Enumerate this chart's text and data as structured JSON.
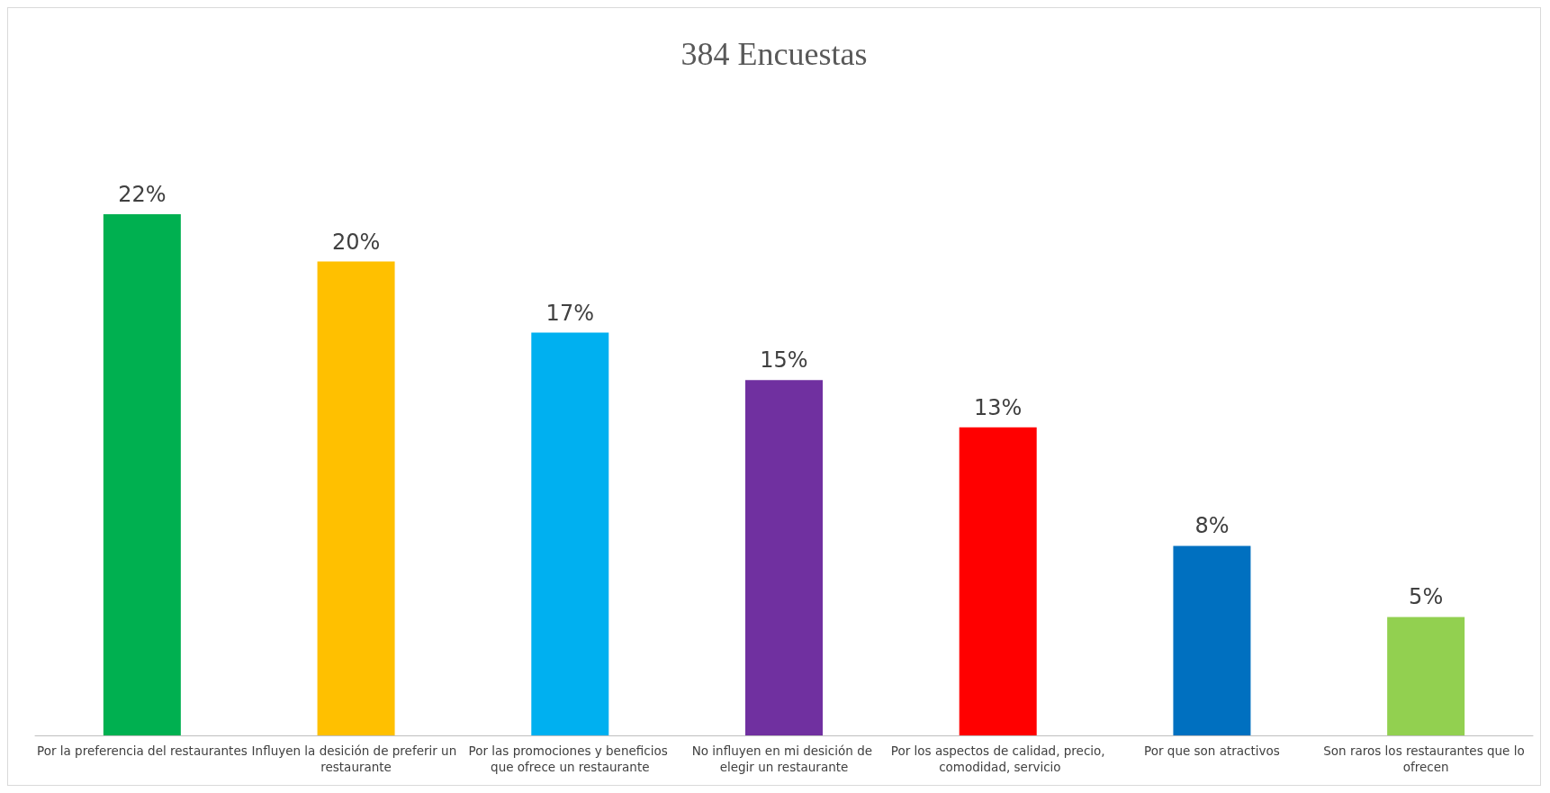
{
  "chart_data": {
    "type": "bar",
    "title": "384 Encuestas",
    "categories": [
      "Por la preferencia del restaurantes",
      "Influyen la desición de preferir un restaurante",
      "Por las promociones y beneficios que ofrece un restaurante",
      "No influyen en mi desición de elegir un restaurante",
      "Por los aspectos de calidad, precio, comodidad, servicio",
      "Por que son atractivos",
      "Son raros los restaurantes que lo ofrecen"
    ],
    "values": [
      22,
      20,
      17,
      15,
      13,
      8,
      5
    ],
    "colors": [
      "#00b050",
      "#ffc000",
      "#00b0f0",
      "#7030a0",
      "#ff0000",
      "#0070c0",
      "#92d050"
    ],
    "value_labels": [
      "22%",
      "20%",
      "17%",
      "15%",
      "13%",
      "8%",
      "5%"
    ]
  }
}
